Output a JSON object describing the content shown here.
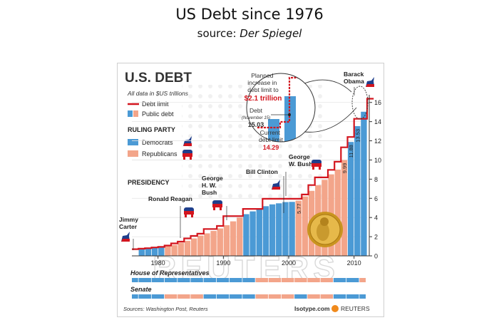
{
  "page": {
    "title": "US Debt since 1976",
    "subtitle_prefix": "source: ",
    "subtitle_source": "Der Spiegel"
  },
  "colors": {
    "dem": "#4b9ad5",
    "rep": "#f3a58a",
    "debt_limit": "#d3151e",
    "brand_red": "#d3151e",
    "axis": "#333333"
  },
  "panel": {
    "title": "U.S. DEBT",
    "note": "All data in $US trillions",
    "sources": "Sources: Washington Post, Reuters",
    "brand_isotype": "Isotype.com",
    "brand_reuters": "REUTERS",
    "watermark": "REUTERS"
  },
  "legend": {
    "debt_limit": "Debt limit",
    "public_debt": "Public debt",
    "ruling_party": "RULING PARTY",
    "democrats": "Democrats",
    "republicans": "Republicans",
    "presidency": "PRESIDENCY"
  },
  "presidents": [
    {
      "name_lines": [
        "Jimmy",
        "Carter"
      ],
      "party": "dem",
      "year": 1977
    },
    {
      "name_lines": [
        "Ronald Reagan"
      ],
      "party": "rep",
      "year": 1981
    },
    {
      "name_lines": [
        "George",
        "H. W.",
        "Bush"
      ],
      "party": "rep",
      "year": 1989
    },
    {
      "name_lines": [
        "Bill Clinton"
      ],
      "party": "dem",
      "year": 1993
    },
    {
      "name_lines": [
        "George",
        "W. Bush"
      ],
      "party": "rep",
      "year": 2001
    },
    {
      "name_lines": [
        "Barack",
        "Obama"
      ],
      "party": "dem",
      "year": 2009
    }
  ],
  "callout": {
    "planned_lines": [
      "Planned",
      "increase in",
      "debt limit to"
    ],
    "planned_value": "$2.1 trillion",
    "debt_label": "Debt",
    "debt_date": "(November 15)",
    "debt_value": "15.03",
    "current_lines": [
      "Current",
      "debt limit"
    ],
    "current_value": "14.29"
  },
  "congress": {
    "house_label": "House of Representatives",
    "senate_label": "Senate",
    "house": [
      {
        "from": 1976,
        "to": 1995,
        "party": "dem"
      },
      {
        "from": 1995,
        "to": 2007,
        "party": "rep"
      },
      {
        "from": 2007,
        "to": 2011,
        "party": "dem"
      },
      {
        "from": 2011,
        "to": 2012,
        "party": "rep"
      }
    ],
    "senate": [
      {
        "from": 1976,
        "to": 1981,
        "party": "dem"
      },
      {
        "from": 1981,
        "to": 1987,
        "party": "rep"
      },
      {
        "from": 1987,
        "to": 1995,
        "party": "dem"
      },
      {
        "from": 1995,
        "to": 2001,
        "party": "rep"
      },
      {
        "from": 2001,
        "to": 2003,
        "party": "dem"
      },
      {
        "from": 2003,
        "to": 2007,
        "party": "rep"
      },
      {
        "from": 2007,
        "to": 2012,
        "party": "dem"
      }
    ]
  },
  "chart_data": {
    "type": "bar",
    "title": "U.S. DEBT",
    "note": "All data in $US trillions",
    "ylim": [
      0,
      16.5
    ],
    "xlim": [
      1976,
      2012
    ],
    "y_ticks": [
      0,
      2,
      4,
      6,
      8,
      10,
      12,
      14,
      16
    ],
    "x_ticks": [
      1980,
      1990,
      2000,
      2010
    ],
    "bars": [
      {
        "year": 1977,
        "value": 0.7,
        "party": "dem"
      },
      {
        "year": 1978,
        "value": 0.78,
        "party": "dem"
      },
      {
        "year": 1979,
        "value": 0.83,
        "party": "dem"
      },
      {
        "year": 1980,
        "value": 0.91,
        "party": "dem"
      },
      {
        "year": 1981,
        "value": 1.0,
        "party": "rep"
      },
      {
        "year": 1982,
        "value": 1.14,
        "party": "rep"
      },
      {
        "year": 1983,
        "value": 1.37,
        "party": "rep"
      },
      {
        "year": 1984,
        "value": 1.57,
        "party": "rep"
      },
      {
        "year": 1985,
        "value": 1.82,
        "party": "rep"
      },
      {
        "year": 1986,
        "value": 2.12,
        "party": "rep"
      },
      {
        "year": 1987,
        "value": 2.35,
        "party": "rep"
      },
      {
        "year": 1988,
        "value": 2.6,
        "party": "rep"
      },
      {
        "year": 1989,
        "value": 2.86,
        "party": "rep"
      },
      {
        "year": 1990,
        "value": 3.2,
        "party": "rep"
      },
      {
        "year": 1991,
        "value": 3.6,
        "party": "rep"
      },
      {
        "year": 1992,
        "value": 4.0,
        "party": "rep"
      },
      {
        "year": 1993,
        "value": 4.35,
        "party": "dem"
      },
      {
        "year": 1994,
        "value": 4.64,
        "party": "dem"
      },
      {
        "year": 1995,
        "value": 4.92,
        "party": "dem"
      },
      {
        "year": 1996,
        "value": 5.18,
        "party": "dem"
      },
      {
        "year": 1997,
        "value": 5.37,
        "party": "dem"
      },
      {
        "year": 1998,
        "value": 5.48,
        "party": "dem"
      },
      {
        "year": 1999,
        "value": 5.61,
        "party": "dem"
      },
      {
        "year": 2000,
        "value": 5.63,
        "party": "dem"
      },
      {
        "year": 2001,
        "value": 5.77,
        "party": "rep",
        "label": "5.77"
      },
      {
        "year": 2002,
        "value": 6.2,
        "party": "rep"
      },
      {
        "year": 2003,
        "value": 6.78,
        "party": "rep"
      },
      {
        "year": 2004,
        "value": 7.38,
        "party": "rep"
      },
      {
        "year": 2005,
        "value": 7.93,
        "party": "rep"
      },
      {
        "year": 2006,
        "value": 8.5,
        "party": "rep"
      },
      {
        "year": 2007,
        "value": 9.0,
        "party": "rep"
      },
      {
        "year": 2008,
        "value": 9.99,
        "party": "rep",
        "label": "9.99"
      },
      {
        "year": 2009,
        "value": 11.88,
        "party": "dem",
        "label": "11.88"
      },
      {
        "year": 2010,
        "value": 13.53,
        "party": "dem",
        "label": "13.53"
      },
      {
        "year": 2011,
        "value": 15.03,
        "party": "dem"
      }
    ],
    "debt_limit": [
      {
        "year": 1976,
        "value": 0.7
      },
      {
        "year": 1977,
        "value": 0.75
      },
      {
        "year": 1978,
        "value": 0.8
      },
      {
        "year": 1979,
        "value": 0.88
      },
      {
        "year": 1980,
        "value": 0.94
      },
      {
        "year": 1981,
        "value": 1.08
      },
      {
        "year": 1982,
        "value": 1.3
      },
      {
        "year": 1983,
        "value": 1.49
      },
      {
        "year": 1984,
        "value": 1.82
      },
      {
        "year": 1985,
        "value": 2.08
      },
      {
        "year": 1986,
        "value": 2.31
      },
      {
        "year": 1987,
        "value": 2.8
      },
      {
        "year": 1988,
        "value": 2.8
      },
      {
        "year": 1989,
        "value": 3.12
      },
      {
        "year": 1990,
        "value": 4.15
      },
      {
        "year": 1991,
        "value": 4.15
      },
      {
        "year": 1992,
        "value": 4.15
      },
      {
        "year": 1993,
        "value": 4.9
      },
      {
        "year": 1994,
        "value": 4.9
      },
      {
        "year": 1995,
        "value": 4.9
      },
      {
        "year": 1996,
        "value": 5.95
      },
      {
        "year": 1997,
        "value": 5.95
      },
      {
        "year": 1998,
        "value": 5.95
      },
      {
        "year": 1999,
        "value": 5.95
      },
      {
        "year": 2000,
        "value": 5.95
      },
      {
        "year": 2001,
        "value": 5.95
      },
      {
        "year": 2002,
        "value": 6.4
      },
      {
        "year": 2003,
        "value": 7.38
      },
      {
        "year": 2004,
        "value": 8.18
      },
      {
        "year": 2005,
        "value": 8.18
      },
      {
        "year": 2006,
        "value": 8.97
      },
      {
        "year": 2007,
        "value": 9.82
      },
      {
        "year": 2008,
        "value": 11.32
      },
      {
        "year": 2009,
        "value": 12.4
      },
      {
        "year": 2010,
        "value": 14.29
      },
      {
        "year": 2011,
        "value": 14.29
      },
      {
        "year": 2012,
        "value": 16.39
      }
    ]
  }
}
